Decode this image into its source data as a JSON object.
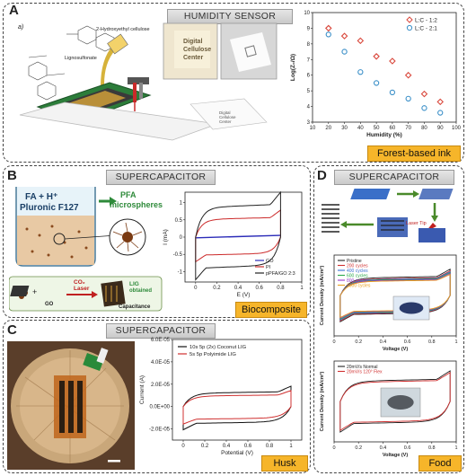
{
  "panel_a": {
    "letter": "A",
    "sub_letter": "a)",
    "banner": "HUMIDITY SENSOR",
    "tag": "Forest-based ink",
    "labels": {
      "hec": "2-Hydroxyethyl cellulose",
      "ligno": "Lignosulfonate",
      "logo_line1": "Digital",
      "logo_line2": "Cellulose",
      "logo_line3": "Center"
    }
  },
  "panel_b": {
    "letter": "B",
    "banner": "SUPERCAPACITOR",
    "tag": "Biocomposite",
    "beaker_line1": "FA + H⁺",
    "beaker_line2": "Pluronic F127",
    "pfa_label": "PFA\nmicrospheres",
    "pfa_line1": "PFA",
    "pfa_line2": "microspheres",
    "co2": "CO₂",
    "laser": "Laser",
    "lig": "LIG",
    "obtained": "obtained",
    "go": "GO",
    "capacitance": "Capacitance"
  },
  "panel_c": {
    "letter": "C",
    "banner": "SUPERCAPACITOR",
    "tag": "Husk"
  },
  "panel_d": {
    "letter": "D",
    "banner": "SUPERCAPACITOR",
    "tag": "Food",
    "laser_tip": "Laser Tip"
  },
  "chart_data": [
    {
      "id": "humidity",
      "type": "scatter",
      "title": "",
      "xlabel": "Humidity (%)",
      "ylabel": "Log(Z₀/Ω)",
      "xlim": [
        10,
        100
      ],
      "ylim": [
        3,
        10
      ],
      "xticks": [
        10,
        20,
        30,
        40,
        50,
        60,
        70,
        80,
        90,
        100
      ],
      "yticks": [
        3,
        4,
        5,
        6,
        7,
        8,
        9,
        10
      ],
      "legend_position": "top-right",
      "series": [
        {
          "name": "L:C - 1:2",
          "color": "#d9473b",
          "marker": "diamond",
          "x": [
            20,
            30,
            40,
            50,
            60,
            70,
            80,
            90
          ],
          "y": [
            9.0,
            8.5,
            8.2,
            7.2,
            6.9,
            6.0,
            4.8,
            4.3
          ]
        },
        {
          "name": "L:C - 2:1",
          "color": "#3a8fc8",
          "marker": "circle",
          "x": [
            20,
            30,
            40,
            50,
            60,
            70,
            80,
            90
          ],
          "y": [
            8.6,
            7.5,
            6.2,
            5.5,
            4.9,
            4.5,
            3.9,
            3.6
          ]
        }
      ]
    },
    {
      "id": "cv_b",
      "type": "line",
      "title": "",
      "xlabel": "E (V)",
      "ylabel": "I (mA)",
      "xlim": [
        -0.1,
        1.0
      ],
      "ylim": [
        -1.3,
        1.3
      ],
      "xticks": [
        0.0,
        0.2,
        0.4,
        0.6,
        0.8,
        1.0
      ],
      "yticks": [
        -1.0,
        -0.5,
        0.0,
        0.5,
        1.0
      ],
      "legend_position": "bottom-right",
      "series": [
        {
          "name": "GO",
          "color": "#2b2bb8",
          "kind": "flat",
          "upper": 0.05,
          "lower": -0.02
        },
        {
          "name": "PI",
          "color": "#cc2a2a",
          "kind": "loop",
          "upper": 0.6,
          "lower": -0.55
        },
        {
          "name": "pPFA/GO 2:3",
          "color": "#222222",
          "kind": "loop",
          "upper": 1.0,
          "lower": -0.95
        }
      ]
    },
    {
      "id": "cv_c",
      "type": "line",
      "title": "",
      "xlabel": "Potential (V)",
      "ylabel": "Current (A)",
      "xlim": [
        -0.1,
        1.1
      ],
      "ylim": [
        -3e-05,
        6e-05
      ],
      "xticks": [
        0.0,
        0.2,
        0.4,
        0.6,
        0.8,
        1.0
      ],
      "yticks": [
        -2e-05,
        0.0,
        2e-05,
        4e-05,
        6e-05
      ],
      "ytick_labels": [
        "-2.0E-05",
        "0.0E+00",
        "2.0E-05",
        "4.0E-05",
        "6.0E-05"
      ],
      "legend_position": "top-left",
      "series": [
        {
          "name": "10s 5p (2x) Coconut LIG",
          "color": "#111111",
          "kind": "loop",
          "upper": 1.4e-05,
          "lower": -1.6e-05
        },
        {
          "name": "5s 5p Polyimide LIG",
          "color": "#d03030",
          "kind": "loop",
          "upper": 1.1e-05,
          "lower": -1.2e-05
        }
      ]
    },
    {
      "id": "cv_d1",
      "type": "line",
      "title": "",
      "xlabel": "Voltage (V)",
      "ylabel": "Current Density (mA/cm²)",
      "xlim": [
        0.0,
        1.0
      ],
      "ylim": [
        -0.6,
        0.6
      ],
      "xticks": [
        0.0,
        0.2,
        0.4,
        0.6,
        0.8,
        1.0
      ],
      "yticks": [],
      "legend_position": "top-left",
      "series": [
        {
          "name": "Pristine",
          "color": "#222222",
          "kind": "loop",
          "upper": 0.3,
          "lower": -0.3
        },
        {
          "name": "200 cycles",
          "color": "#d03030",
          "kind": "loop",
          "upper": 0.28,
          "lower": -0.29
        },
        {
          "name": "400 cycles",
          "color": "#3a6fd0",
          "kind": "loop",
          "upper": 0.27,
          "lower": -0.28
        },
        {
          "name": "600 cycles",
          "color": "#2aa84a",
          "kind": "loop",
          "upper": 0.26,
          "lower": -0.27
        },
        {
          "name": "800 cycles",
          "color": "#9a3ac8",
          "kind": "loop",
          "upper": 0.25,
          "lower": -0.26
        },
        {
          "name": "1000 cycles",
          "color": "#e8a020",
          "kind": "loop",
          "upper": 0.24,
          "lower": -0.25
        }
      ]
    },
    {
      "id": "cv_d2",
      "type": "line",
      "title": "",
      "xlabel": "Voltage (V)",
      "ylabel": "Current Density (mA/cm²)",
      "xlim": [
        0.0,
        1.0
      ],
      "ylim": [
        -0.6,
        0.6
      ],
      "xticks": [
        0.0,
        0.2,
        0.4,
        0.6,
        0.8,
        1.0
      ],
      "yticks": [],
      "legend_position": "top-left",
      "series": [
        {
          "name": "20mV/s Normal",
          "color": "#222222",
          "kind": "loop",
          "upper": 0.35,
          "lower": -0.35
        },
        {
          "name": "20mV/s 120° Flex",
          "color": "#d03030",
          "kind": "loop",
          "upper": 0.33,
          "lower": -0.33
        }
      ]
    }
  ]
}
